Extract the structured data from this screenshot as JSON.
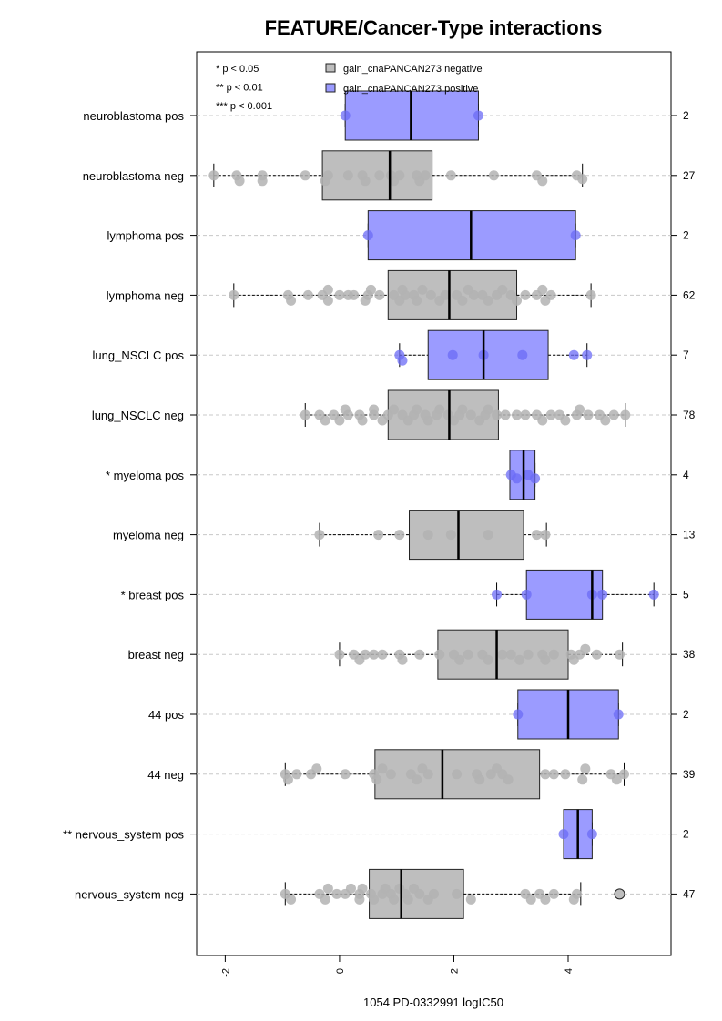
{
  "chart_data": {
    "type": "box",
    "title": "FEATURE/Cancer-Type interactions",
    "xlabel": "1054 PD-0332991 logIC50",
    "xlim": [
      -2.5,
      5.8
    ],
    "x_ticks": [
      -2,
      0,
      2,
      4
    ],
    "x_tick_labels": [
      "-2",
      "0",
      "2",
      "4"
    ],
    "grid": "dashed horizontal lines at each group",
    "legend": {
      "position": "top",
      "significance": [
        "* p < 0.05",
        "** p < 0.01",
        "*** p < 0.001"
      ],
      "entries": [
        {
          "label": "gain_cnaPANCAN273 negative",
          "color": "#bebebe"
        },
        {
          "label": "gain_cnaPANCAN273 positive",
          "color": "#9b9bff"
        }
      ]
    },
    "colors": {
      "negative_box": "#bebebe",
      "positive_box": "#9b9bff",
      "negative_point": "#b3b3b3",
      "positive_point": "#6b6bf5"
    },
    "groups": [
      {
        "label": "neuroblastoma pos",
        "status": "positive",
        "n": "2",
        "whisker_low": 0.1,
        "q1": 0.1,
        "median": 1.25,
        "q3": 2.43,
        "whisker_high": 2.43,
        "points": [
          [
            0.1,
            0
          ],
          [
            2.43,
            0
          ]
        ]
      },
      {
        "label": "neuroblastoma neg",
        "status": "negative",
        "n": "27",
        "whisker_low": -2.2,
        "q1": -0.3,
        "median": 0.88,
        "q3": 1.62,
        "whisker_high": 4.25,
        "points": [
          [
            -2.2,
            0
          ],
          [
            -1.8,
            0
          ],
          [
            -1.75,
            0.6
          ],
          [
            -1.35,
            0
          ],
          [
            -1.35,
            0.6
          ],
          [
            -0.6,
            0
          ],
          [
            -0.25,
            0.6
          ],
          [
            -0.2,
            0
          ],
          [
            0.15,
            0
          ],
          [
            0.4,
            0
          ],
          [
            0.45,
            0.6
          ],
          [
            0.7,
            0
          ],
          [
            0.9,
            0
          ],
          [
            0.95,
            0.6
          ],
          [
            1.05,
            0
          ],
          [
            1.35,
            0
          ],
          [
            1.4,
            0.6
          ],
          [
            1.5,
            0
          ],
          [
            1.95,
            0
          ],
          [
            2.7,
            0
          ],
          [
            3.45,
            0
          ],
          [
            3.55,
            0.6
          ],
          [
            4.15,
            0
          ],
          [
            4.25,
            0.4
          ]
        ]
      },
      {
        "label": "lymphoma pos",
        "status": "positive",
        "n": "2",
        "whisker_low": 0.5,
        "q1": 0.5,
        "median": 2.3,
        "q3": 4.13,
        "whisker_high": 4.13,
        "points": [
          [
            0.5,
            0
          ],
          [
            4.13,
            0
          ]
        ]
      },
      {
        "label": "lymphoma neg",
        "status": "negative",
        "n": "62",
        "whisker_low": -1.85,
        "q1": 0.85,
        "median": 1.92,
        "q3": 3.1,
        "whisker_high": 4.4,
        "points": [
          [
            -1.85,
            0
          ],
          [
            -0.9,
            0
          ],
          [
            -0.85,
            0.6
          ],
          [
            -0.55,
            0
          ],
          [
            -0.3,
            0
          ],
          [
            -0.2,
            0.6
          ],
          [
            -0.2,
            -0.6
          ],
          [
            0.0,
            0
          ],
          [
            0.15,
            0
          ],
          [
            0.25,
            0
          ],
          [
            0.5,
            0
          ],
          [
            0.45,
            0.6
          ],
          [
            0.55,
            -0.6
          ],
          [
            0.7,
            0
          ],
          [
            0.95,
            0
          ],
          [
            1.05,
            0.6
          ],
          [
            1.15,
            0
          ],
          [
            1.1,
            -0.6
          ],
          [
            1.3,
            0
          ],
          [
            1.35,
            0.6
          ],
          [
            1.45,
            -0.6
          ],
          [
            1.6,
            0
          ],
          [
            1.75,
            0.6
          ],
          [
            1.85,
            0
          ],
          [
            2.05,
            0
          ],
          [
            2.15,
            0.6
          ],
          [
            2.25,
            -0.6
          ],
          [
            2.35,
            0
          ],
          [
            2.5,
            0
          ],
          [
            2.6,
            0.6
          ],
          [
            2.75,
            0
          ],
          [
            2.85,
            -0.6
          ],
          [
            3.0,
            0
          ],
          [
            3.1,
            0.6
          ],
          [
            3.25,
            0
          ],
          [
            3.45,
            0
          ],
          [
            3.55,
            -0.6
          ],
          [
            3.6,
            0.6
          ],
          [
            3.7,
            0
          ],
          [
            4.4,
            0
          ]
        ]
      },
      {
        "label": "lung_NSCLC pos",
        "status": "positive",
        "n": "7",
        "whisker_low": 1.05,
        "q1": 1.55,
        "median": 2.52,
        "q3": 3.65,
        "whisker_high": 4.33,
        "points": [
          [
            1.05,
            0
          ],
          [
            1.1,
            0.6
          ],
          [
            1.98,
            0
          ],
          [
            2.52,
            0
          ],
          [
            3.2,
            0
          ],
          [
            4.1,
            0
          ],
          [
            4.33,
            0
          ]
        ]
      },
      {
        "label": "lung_NSCLC neg",
        "status": "negative",
        "n": "78",
        "whisker_low": -0.6,
        "q1": 0.85,
        "median": 1.92,
        "q3": 2.78,
        "whisker_high": 5.0,
        "points": [
          [
            -0.6,
            0
          ],
          [
            -0.35,
            0
          ],
          [
            -0.25,
            0.6
          ],
          [
            -0.1,
            0
          ],
          [
            0.0,
            0.6
          ],
          [
            0.1,
            -0.6
          ],
          [
            0.15,
            0
          ],
          [
            0.35,
            0
          ],
          [
            0.4,
            0.6
          ],
          [
            0.6,
            0
          ],
          [
            0.6,
            -0.6
          ],
          [
            0.75,
            0.6
          ],
          [
            0.85,
            0
          ],
          [
            0.95,
            -0.6
          ],
          [
            1.1,
            0
          ],
          [
            1.2,
            0.6
          ],
          [
            1.3,
            0
          ],
          [
            1.35,
            -0.6
          ],
          [
            1.5,
            0
          ],
          [
            1.55,
            0.6
          ],
          [
            1.7,
            0
          ],
          [
            1.75,
            -0.6
          ],
          [
            1.9,
            0
          ],
          [
            2.0,
            0.6
          ],
          [
            2.1,
            0
          ],
          [
            2.15,
            -0.6
          ],
          [
            2.3,
            0
          ],
          [
            2.45,
            0.6
          ],
          [
            2.55,
            0
          ],
          [
            2.6,
            -0.6
          ],
          [
            2.75,
            0
          ],
          [
            2.9,
            0
          ],
          [
            3.1,
            0
          ],
          [
            3.25,
            0
          ],
          [
            3.45,
            0
          ],
          [
            3.55,
            0.6
          ],
          [
            3.7,
            0
          ],
          [
            3.85,
            0
          ],
          [
            3.95,
            0.6
          ],
          [
            4.15,
            0
          ],
          [
            4.2,
            -0.6
          ],
          [
            4.35,
            0
          ],
          [
            4.55,
            0
          ],
          [
            4.65,
            0.6
          ],
          [
            4.8,
            0
          ],
          [
            5.0,
            0
          ]
        ]
      },
      {
        "label": "* myeloma pos",
        "status": "positive",
        "n": "4",
        "whisker_low": 2.98,
        "q1": 2.98,
        "median": 3.22,
        "q3": 3.42,
        "whisker_high": 3.42,
        "points": [
          [
            3.0,
            0
          ],
          [
            3.1,
            0.4
          ],
          [
            3.3,
            0
          ],
          [
            3.42,
            0.4
          ]
        ]
      },
      {
        "label": "myeloma neg",
        "status": "negative",
        "n": "13",
        "whisker_low": -0.35,
        "q1": 1.22,
        "median": 2.08,
        "q3": 3.22,
        "whisker_high": 3.62,
        "points": [
          [
            -0.35,
            0
          ],
          [
            0.68,
            0
          ],
          [
            1.05,
            0
          ],
          [
            1.55,
            0
          ],
          [
            1.95,
            0
          ],
          [
            2.6,
            0
          ],
          [
            3.45,
            0
          ],
          [
            3.6,
            0
          ]
        ]
      },
      {
        "label": "* breast pos",
        "status": "positive",
        "n": "5",
        "whisker_low": 2.75,
        "q1": 3.27,
        "median": 4.42,
        "q3": 4.6,
        "whisker_high": 5.5,
        "points": [
          [
            2.75,
            0
          ],
          [
            3.27,
            0
          ],
          [
            4.42,
            0
          ],
          [
            4.6,
            0
          ],
          [
            5.5,
            0
          ]
        ]
      },
      {
        "label": "breast neg",
        "status": "negative",
        "n": "38",
        "whisker_low": 0.0,
        "q1": 1.72,
        "median": 2.75,
        "q3": 4.0,
        "whisker_high": 4.95,
        "points": [
          [
            0.0,
            0
          ],
          [
            0.25,
            0
          ],
          [
            0.35,
            0.6
          ],
          [
            0.45,
            0
          ],
          [
            0.6,
            0
          ],
          [
            0.75,
            0
          ],
          [
            1.05,
            0
          ],
          [
            1.1,
            0.6
          ],
          [
            1.4,
            0
          ],
          [
            1.75,
            0
          ],
          [
            2.0,
            0
          ],
          [
            2.1,
            0.6
          ],
          [
            2.25,
            0
          ],
          [
            2.5,
            0
          ],
          [
            2.6,
            0.6
          ],
          [
            2.85,
            0
          ],
          [
            3.0,
            0
          ],
          [
            3.15,
            0.6
          ],
          [
            3.3,
            0
          ],
          [
            3.55,
            0
          ],
          [
            3.6,
            0.6
          ],
          [
            3.75,
            0
          ],
          [
            4.05,
            0
          ],
          [
            4.1,
            0.6
          ],
          [
            4.2,
            0
          ],
          [
            4.3,
            -0.6
          ],
          [
            4.5,
            0
          ],
          [
            4.9,
            0
          ]
        ]
      },
      {
        "label": "44 pos",
        "status": "positive",
        "n": "2",
        "whisker_low": 3.12,
        "q1": 3.12,
        "median": 4.0,
        "q3": 4.88,
        "whisker_high": 4.88,
        "points": [
          [
            3.12,
            0
          ],
          [
            4.88,
            0
          ]
        ]
      },
      {
        "label": "44 neg",
        "status": "negative",
        "n": "39",
        "whisker_low": -0.95,
        "q1": 0.62,
        "median": 1.8,
        "q3": 3.5,
        "whisker_high": 4.98,
        "points": [
          [
            -0.95,
            0
          ],
          [
            -0.9,
            0.6
          ],
          [
            -0.75,
            0
          ],
          [
            -0.5,
            0
          ],
          [
            -0.4,
            -0.6
          ],
          [
            0.1,
            0
          ],
          [
            0.6,
            0
          ],
          [
            0.65,
            0.6
          ],
          [
            0.75,
            -0.6
          ],
          [
            0.9,
            0
          ],
          [
            1.25,
            0
          ],
          [
            1.35,
            0.6
          ],
          [
            1.45,
            -0.6
          ],
          [
            1.55,
            0
          ],
          [
            2.05,
            0
          ],
          [
            2.4,
            0
          ],
          [
            2.45,
            0.6
          ],
          [
            2.65,
            0
          ],
          [
            2.75,
            -0.6
          ],
          [
            2.85,
            0
          ],
          [
            2.95,
            0.6
          ],
          [
            3.6,
            0
          ],
          [
            3.75,
            0
          ],
          [
            3.95,
            0
          ],
          [
            4.25,
            0.6
          ],
          [
            4.3,
            -0.6
          ],
          [
            4.75,
            0
          ],
          [
            4.85,
            0.6
          ],
          [
            4.98,
            0
          ]
        ]
      },
      {
        "label": "** nervous_system pos",
        "status": "positive",
        "n": "2",
        "whisker_low": 3.92,
        "q1": 3.92,
        "median": 4.17,
        "q3": 4.42,
        "whisker_high": 4.42,
        "points": [
          [
            3.92,
            0
          ],
          [
            4.42,
            0
          ]
        ]
      },
      {
        "label": "nervous_system neg",
        "status": "negative",
        "n": "47",
        "whisker_low": -0.95,
        "q1": 0.52,
        "median": 1.08,
        "q3": 2.17,
        "whisker_high": 4.22,
        "points": [
          [
            -0.95,
            0
          ],
          [
            -0.85,
            0.6
          ],
          [
            -0.35,
            0
          ],
          [
            -0.25,
            0.6
          ],
          [
            -0.2,
            -0.6
          ],
          [
            -0.05,
            0
          ],
          [
            0.1,
            0
          ],
          [
            0.2,
            -0.6
          ],
          [
            0.35,
            0.6
          ],
          [
            0.35,
            0
          ],
          [
            0.4,
            -0.6
          ],
          [
            0.55,
            0
          ],
          [
            0.6,
            0.6
          ],
          [
            0.75,
            0
          ],
          [
            0.8,
            -0.6
          ],
          [
            0.9,
            0
          ],
          [
            0.95,
            0.6
          ],
          [
            1.05,
            -0.6
          ],
          [
            1.15,
            0
          ],
          [
            1.2,
            0.6
          ],
          [
            1.3,
            -0.6
          ],
          [
            1.4,
            0
          ],
          [
            1.55,
            0.6
          ],
          [
            1.65,
            0
          ],
          [
            2.05,
            0
          ],
          [
            2.3,
            0.6
          ],
          [
            3.25,
            0
          ],
          [
            3.35,
            0.6
          ],
          [
            3.5,
            0
          ],
          [
            3.6,
            0.6
          ],
          [
            3.75,
            0
          ],
          [
            4.1,
            0.6
          ],
          [
            4.15,
            0
          ]
        ],
        "outliers": [
          4.9
        ]
      }
    ]
  }
}
